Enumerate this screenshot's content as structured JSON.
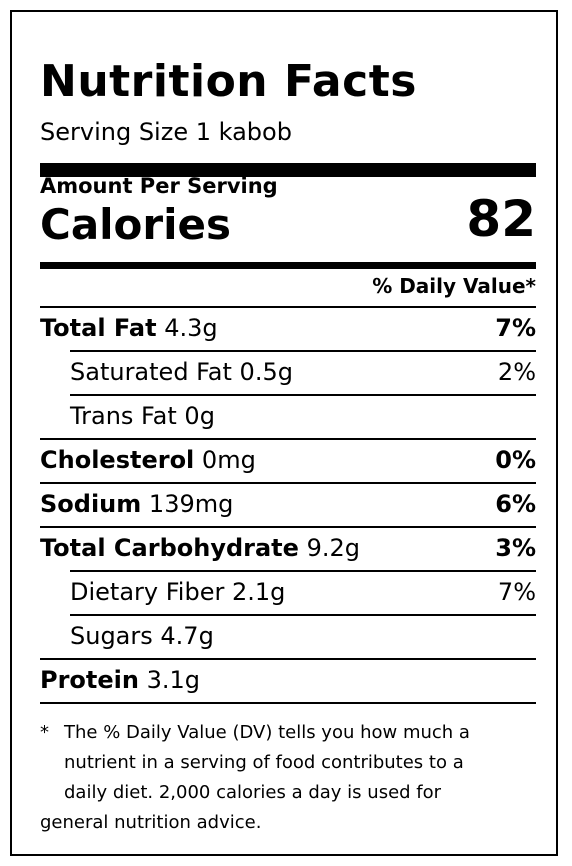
{
  "title": "Nutrition Facts",
  "serving_size": "Serving Size 1 kabob",
  "amount_per_serving": "Amount Per Serving",
  "calories_label": "Calories",
  "calories_value": "82",
  "daily_value_header": "% Daily Value*",
  "nutrients": [
    {
      "name": "Total Fat",
      "amount": "4.3g",
      "dv": "7%",
      "bold": true,
      "indent": false
    },
    {
      "name": "Saturated Fat",
      "amount": "0.5g",
      "dv": "2%",
      "bold": false,
      "indent": true
    },
    {
      "name": "Trans Fat",
      "amount": "0g",
      "dv": "",
      "bold": false,
      "indent": true
    },
    {
      "name": "Cholesterol",
      "amount": "0mg",
      "dv": "0%",
      "bold": true,
      "indent": false
    },
    {
      "name": "Sodium",
      "amount": "139mg",
      "dv": "6%",
      "bold": true,
      "indent": false
    },
    {
      "name": "Total Carbohydrate",
      "amount": "9.2g",
      "dv": "3%",
      "bold": true,
      "indent": false
    },
    {
      "name": "Dietary Fiber",
      "amount": "2.1g",
      "dv": "7%",
      "bold": false,
      "indent": true
    },
    {
      "name": "Sugars",
      "amount": "4.7g",
      "dv": "",
      "bold": false,
      "indent": true
    },
    {
      "name": "Protein",
      "amount": "3.1g",
      "dv": "",
      "bold": true,
      "indent": false
    }
  ],
  "footnote": {
    "star": "*",
    "lines": [
      "The % Daily Value (DV) tells you how much a",
      "nutrient in a serving of food contributes to a",
      "daily diet. 2,000 calories a day is used for",
      "general nutrition advice."
    ]
  }
}
